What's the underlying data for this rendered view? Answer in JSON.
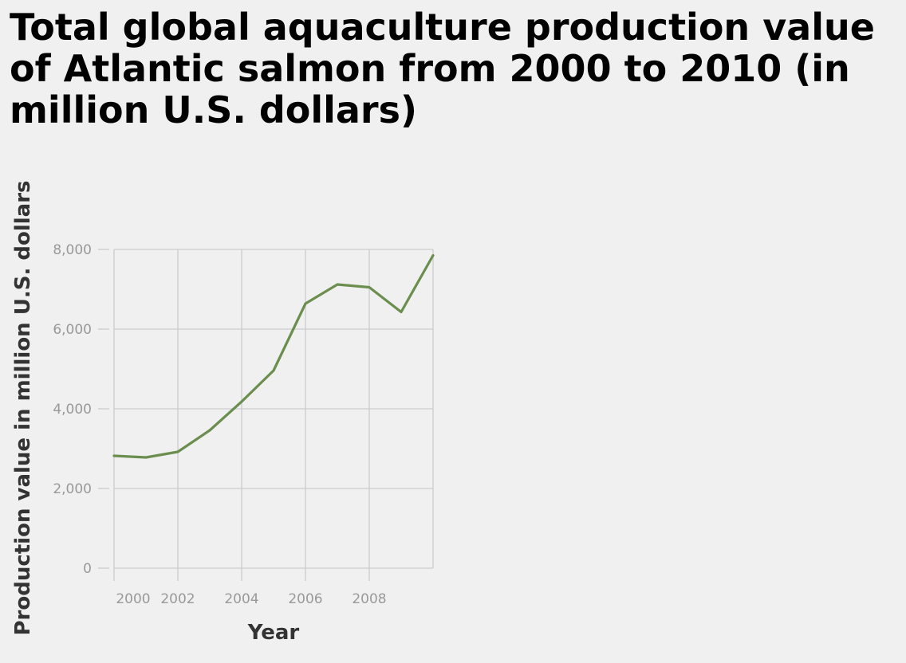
{
  "chart_data": {
    "type": "line",
    "title": "Total global aquaculture production value of Atlantic salmon from 2000 to 2010 (in million U.S. dollars)",
    "xlabel": "Year",
    "ylabel": "Production value in million U.S. dollars",
    "xlim": [
      2000,
      2010
    ],
    "ylim": [
      0,
      8000
    ],
    "x_ticks": [
      2000,
      2002,
      2004,
      2006,
      2008
    ],
    "x_tick_labels": [
      "2000",
      "2002",
      "2004",
      "2006",
      "2008"
    ],
    "y_ticks": [
      0,
      2000,
      4000,
      6000,
      8000
    ],
    "y_tick_labels": [
      "0",
      "2,000",
      "4,000",
      "6,000",
      "8,000"
    ],
    "grid": true,
    "line_color": "#6b8e4e",
    "series": [
      {
        "x": [
          2000,
          2001,
          2002,
          2003,
          2004,
          2005,
          2006,
          2007,
          2008,
          2009,
          2010
        ],
        "values": [
          2820,
          2780,
          2920,
          3460,
          4180,
          4960,
          6640,
          7120,
          7050,
          6430,
          7850
        ]
      }
    ]
  }
}
